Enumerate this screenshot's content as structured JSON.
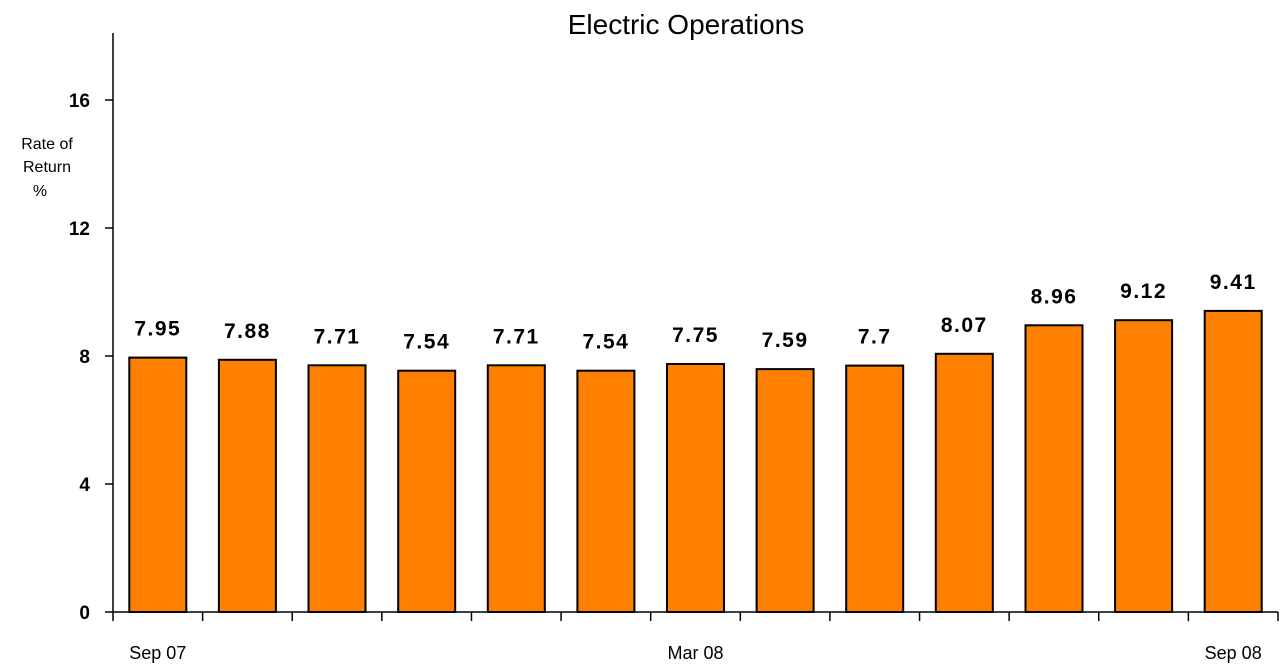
{
  "chart_data": {
    "type": "bar",
    "title": "Electric Operations",
    "ylabel_lines": [
      "Rate of",
      "Return",
      "%"
    ],
    "xlabel": "",
    "ylim": [
      0,
      18
    ],
    "yticks": [
      0,
      4,
      8,
      12,
      16
    ],
    "values": [
      7.95,
      7.88,
      7.71,
      7.54,
      7.71,
      7.54,
      7.75,
      7.59,
      7.7,
      8.07,
      8.96,
      9.12,
      9.41
    ],
    "data_labels": [
      "7.95",
      "7.88",
      "7.71",
      "7.54",
      "7.71",
      "7.54",
      "7.75",
      "7.59",
      "7.7",
      "8.07",
      "8.96",
      "9.12",
      "9.41"
    ],
    "x_tick_labels": [
      {
        "index": 0,
        "text": "Sep 07"
      },
      {
        "index": 6,
        "text": "Mar 08"
      },
      {
        "index": 12,
        "text": "Sep 08"
      }
    ],
    "colors": {
      "bar": "#ff8000",
      "bar_stroke": "#000000",
      "axis": "#000000"
    },
    "grid": false,
    "legend": "none"
  }
}
